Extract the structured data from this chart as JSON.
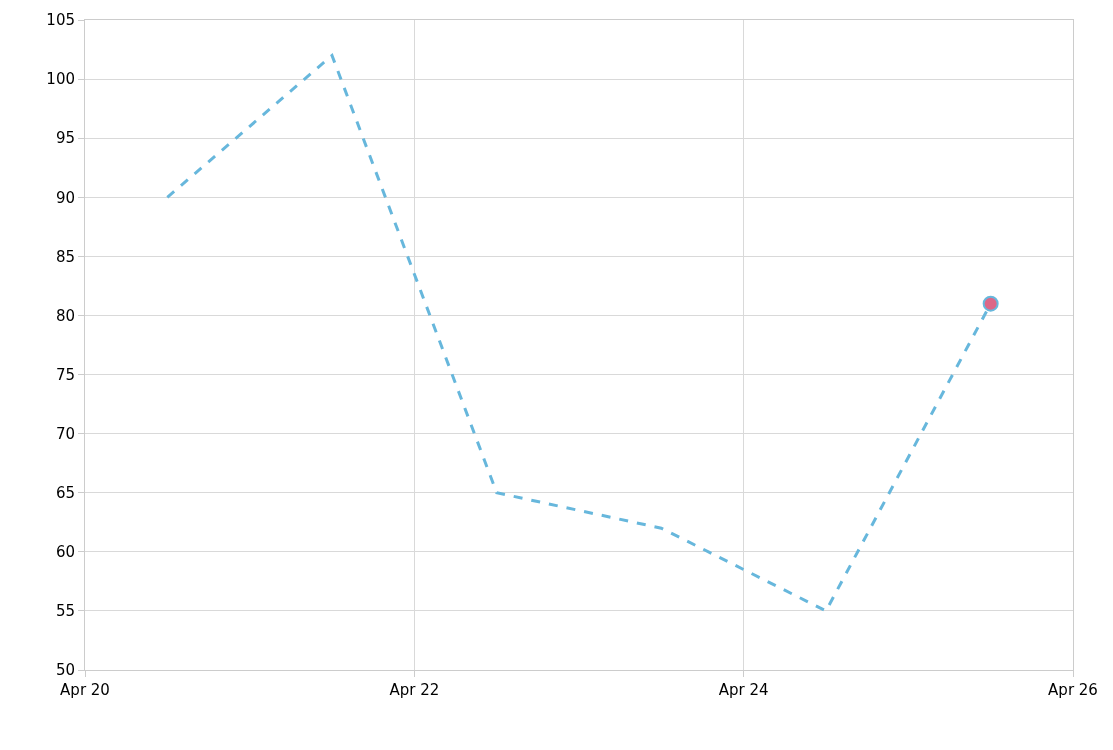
{
  "chart_data": {
    "type": "line",
    "x": [
      "--04-20T12:00",
      "--04-21T12:00",
      "--04-22T12:00",
      "--04-23T12:00",
      "--04-24T12:00",
      "--04-25T12:00"
    ],
    "series": [
      {
        "color": "#67b7dc",
        "values": [
          90,
          102,
          65,
          62,
          55,
          81
        ],
        "line_style": "dashed",
        "marker": "none"
      },
      {
        "type": "scatter",
        "color": "#dc6788",
        "x": [
          "--04-25T12:00"
        ],
        "values": [
          81
        ],
        "marker": "circle"
      }
    ],
    "xlim": [
      "--04-20",
      "--04-26"
    ],
    "xticks": [
      {
        "value": "--04-20",
        "label": "Apr 20"
      },
      {
        "value": "--04-22",
        "label": "Apr 22"
      },
      {
        "value": "--04-24",
        "label": "Apr 24"
      },
      {
        "value": "--04-26",
        "label": "Apr 26"
      }
    ],
    "ylim": [
      50,
      105
    ],
    "yticks": [
      50,
      55,
      60,
      65,
      70,
      75,
      80,
      85,
      90,
      95,
      100,
      105
    ],
    "grid": true
  }
}
